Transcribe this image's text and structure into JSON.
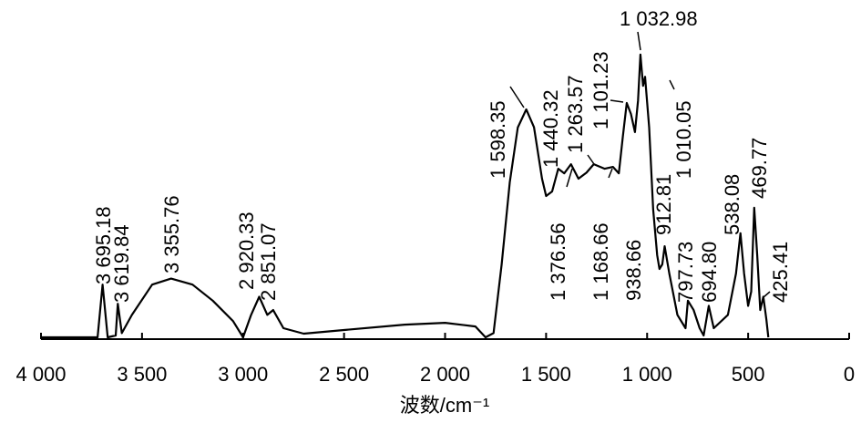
{
  "chart_data": {
    "type": "line",
    "color": "#000000",
    "xlabel": "波数/cm⁻¹",
    "xlim": [
      4000,
      0
    ],
    "ylim": [
      0,
      100
    ],
    "xticks": [
      {
        "value": 4000,
        "label": "4 000"
      },
      {
        "value": 3500,
        "label": "3 500"
      },
      {
        "value": 3000,
        "label": "3 000"
      },
      {
        "value": 2500,
        "label": "2 500"
      },
      {
        "value": 2000,
        "label": "2 000"
      },
      {
        "value": 1500,
        "label": "1 500"
      },
      {
        "value": 1000,
        "label": "1 000"
      },
      500,
      0
    ],
    "x": [
      4000,
      3800,
      3720,
      3695,
      3670,
      3630,
      3620,
      3600,
      3550,
      3450,
      3356,
      3250,
      3150,
      3050,
      3000,
      2960,
      2920,
      2880,
      2851,
      2800,
      2700,
      2500,
      2200,
      2000,
      1850,
      1800,
      1760,
      1720,
      1680,
      1640,
      1598,
      1560,
      1520,
      1500,
      1470,
      1440,
      1410,
      1377,
      1340,
      1300,
      1264,
      1210,
      1169,
      1140,
      1120,
      1101,
      1080,
      1060,
      1045,
      1033,
      1020,
      1010,
      990,
      970,
      950,
      939,
      925,
      913,
      890,
      850,
      810,
      798,
      770,
      740,
      720,
      695,
      670,
      600,
      560,
      538,
      520,
      500,
      485,
      470,
      455,
      440,
      425,
      410,
      400
    ],
    "values": [
      0.6,
      0.6,
      0.6,
      18,
      0.6,
      1.2,
      11.7,
      2,
      8,
      18,
      20,
      18,
      12.7,
      6,
      0.6,
      8,
      14,
      8,
      9.6,
      3.6,
      1.8,
      3,
      4.8,
      5.4,
      4.2,
      0.6,
      2,
      24.7,
      51.8,
      69.9,
      75.9,
      70,
      53,
      47.3,
      48.8,
      56.3,
      54.8,
      57.8,
      53,
      55,
      57.8,
      56.3,
      56.9,
      54.8,
      66.9,
      78,
      74.4,
      68.4,
      78.9,
      94,
      83.7,
      86.7,
      69.9,
      42.8,
      27.7,
      23.2,
      24.7,
      30.7,
      21.7,
      8,
      3.6,
      12.7,
      9.6,
      3.6,
      1.2,
      11,
      3.6,
      8,
      21.7,
      35,
      21.7,
      11,
      15.7,
      43.4,
      27.7,
      9.6,
      14,
      6.6,
      0.6
    ],
    "annotations": [
      {
        "x": 3695.18,
        "label": "3 695.18"
      },
      {
        "x": 3619.84,
        "label": "3 619.84"
      },
      {
        "x": 3355.76,
        "label": "3 355.76"
      },
      {
        "x": 2920.33,
        "label": "2 920.33"
      },
      {
        "x": 2851.07,
        "label": "2 851.07"
      },
      {
        "x": 1598.35,
        "label": "1 598.35"
      },
      {
        "x": 1440.32,
        "label": "1 440.32"
      },
      {
        "x": 1263.57,
        "label": "1 263.57"
      },
      {
        "x": 1101.23,
        "label": "1 101.23"
      },
      {
        "x": 1032.98,
        "label": "1 032.98"
      },
      {
        "x": 1010.05,
        "label": "1 010.05"
      },
      {
        "x": 1376.56,
        "label": "1 376.56"
      },
      {
        "x": 1168.66,
        "label": "1 168.66"
      },
      {
        "x": 938.66,
        "label": "938.66"
      },
      {
        "x": 912.81,
        "label": "912.81"
      },
      {
        "x": 797.73,
        "label": "797.73"
      },
      {
        "x": 694.8,
        "label": "694.80"
      },
      {
        "x": 538.08,
        "label": "538.08"
      },
      {
        "x": 469.77,
        "label": "469.77"
      },
      {
        "x": 425.41,
        "label": "425.41"
      }
    ]
  }
}
